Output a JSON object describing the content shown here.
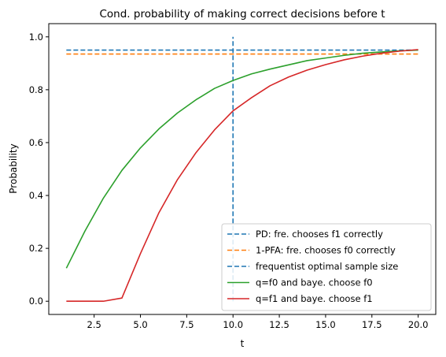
{
  "chart_data": {
    "type": "line",
    "title": "Cond. probability of making correct decisions before t",
    "xlabel": "t",
    "ylabel": "Probability",
    "xlim": [
      0.05,
      20.95
    ],
    "ylim": [
      -0.05,
      1.05
    ],
    "xticks": [
      2.5,
      5.0,
      7.5,
      10.0,
      12.5,
      15.0,
      17.5,
      20.0
    ],
    "xtick_labels": [
      "2.5",
      "5.0",
      "7.5",
      "10.0",
      "12.5",
      "15.0",
      "17.5",
      "20.0"
    ],
    "yticks": [
      0.0,
      0.2,
      0.4,
      0.6,
      0.8,
      1.0
    ],
    "ytick_labels": [
      "0.0",
      "0.2",
      "0.4",
      "0.6",
      "0.8",
      "1.0"
    ],
    "grid": false,
    "legend_position": "lower-right",
    "series": [
      {
        "name": "PD: fre. chooses f1 correctly",
        "kind": "hline",
        "y": 0.95,
        "x_range": [
          1,
          20
        ],
        "color": "#1f77b4",
        "dashed": true
      },
      {
        "name": "1-PFA: fre. chooses f0 correctly",
        "kind": "hline",
        "y": 0.935,
        "x_range": [
          1,
          20
        ],
        "color": "#ff7f0e",
        "dashed": true
      },
      {
        "name": "frequentist optimal sample size",
        "kind": "vline",
        "x": 10,
        "y_range": [
          0,
          1
        ],
        "color": "#1f77b4",
        "dashed": true
      },
      {
        "name": "q=f0 and baye. choose f0",
        "kind": "line",
        "color": "#2ca02c",
        "x": [
          1,
          2,
          3,
          4,
          5,
          6,
          7,
          8,
          9,
          10,
          11,
          12,
          13,
          14,
          15,
          16,
          17,
          18,
          19,
          20
        ],
        "y": [
          0.125,
          0.265,
          0.39,
          0.495,
          0.58,
          0.652,
          0.712,
          0.762,
          0.805,
          0.835,
          0.86,
          0.878,
          0.894,
          0.91,
          0.92,
          0.93,
          0.938,
          0.943,
          0.947,
          0.95
        ]
      },
      {
        "name": "q=f1 and baye. choose f1",
        "kind": "line",
        "color": "#d62728",
        "x": [
          1,
          2,
          3,
          4,
          5,
          6,
          7,
          8,
          9,
          10,
          11,
          12,
          13,
          14,
          15,
          16,
          17,
          18,
          19,
          20
        ],
        "y": [
          0.0,
          0.0,
          0.0,
          0.012,
          0.18,
          0.335,
          0.46,
          0.562,
          0.648,
          0.72,
          0.77,
          0.815,
          0.848,
          0.874,
          0.895,
          0.913,
          0.927,
          0.938,
          0.946,
          0.952
        ]
      }
    ]
  }
}
